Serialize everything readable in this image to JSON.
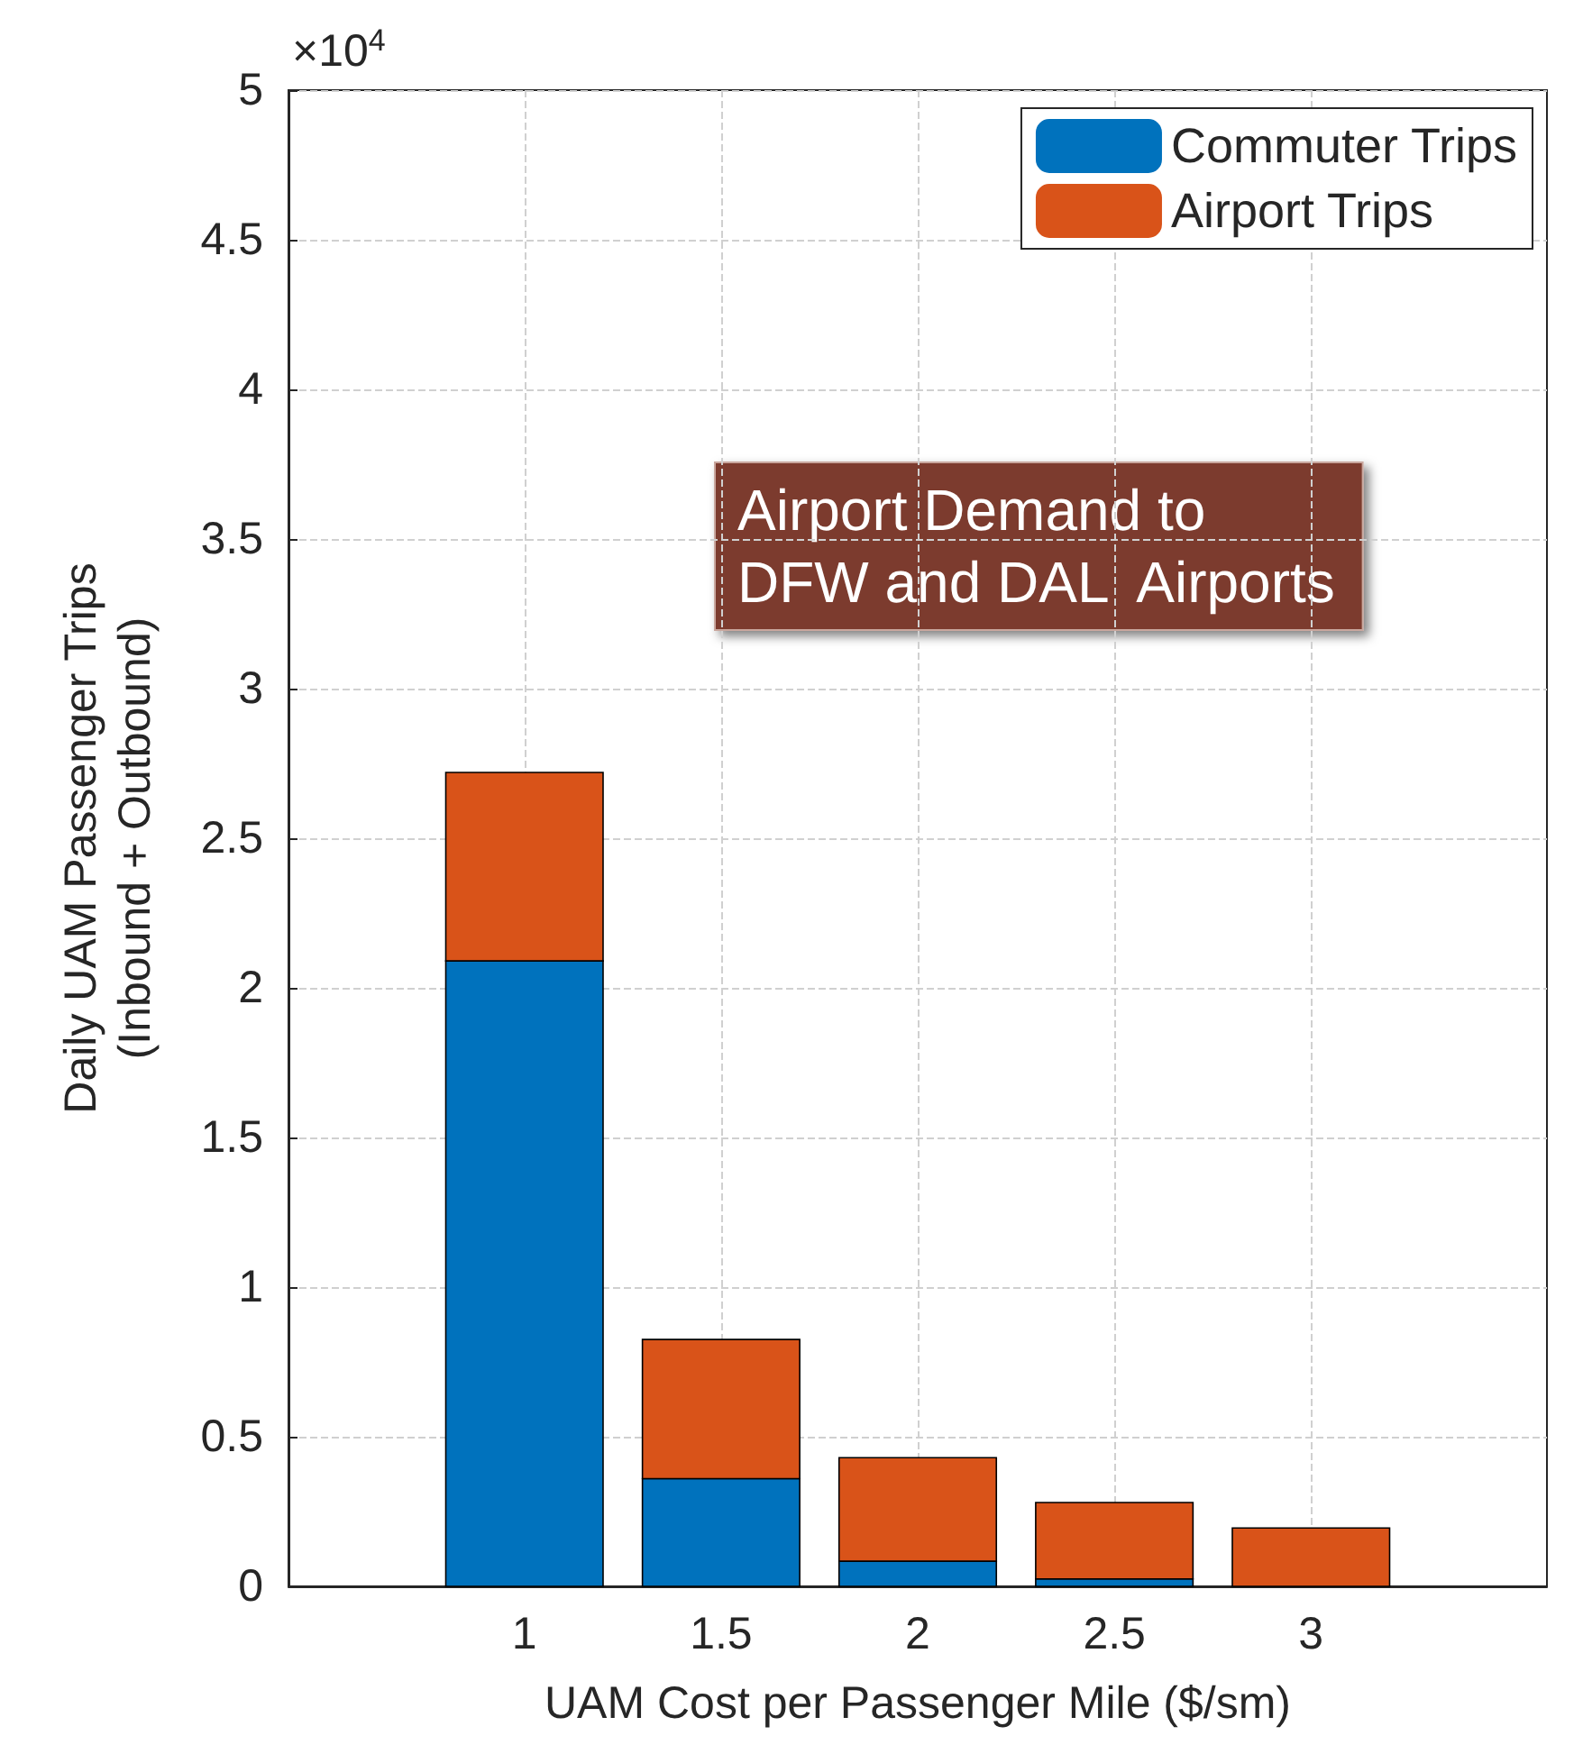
{
  "chart_data": {
    "type": "bar",
    "stacked": true,
    "x": [
      1,
      1.5,
      2,
      2.5,
      3
    ],
    "series": [
      {
        "name": "Commuter Trips",
        "color": "#0072bd",
        "values": [
          2.09,
          0.36,
          0.084,
          0.025,
          null
        ]
      },
      {
        "name": "Airport Trips",
        "color": "#d95319",
        "values": [
          0.63,
          0.465,
          0.346,
          0.255,
          0.195
        ]
      }
    ],
    "xlabel": "UAM Cost per Passenger Mile ($/sm)",
    "ylabel": "Daily UAM Passenger Trips\n(Inbound + Outbound)",
    "xlim": [
      0.4,
      3.6
    ],
    "xticks": [
      1,
      1.5,
      2,
      2.5,
      3
    ],
    "ylim": [
      0,
      5
    ],
    "yticks": [
      0,
      0.5,
      1,
      1.5,
      2,
      2.5,
      3,
      3.5,
      4,
      4.5,
      5
    ],
    "annotations": [
      "×10$^{4}$",
      "Airport Demand to\nDFW and DAL  Airports"
    ],
    "grid": true,
    "legend": "top right"
  }
}
